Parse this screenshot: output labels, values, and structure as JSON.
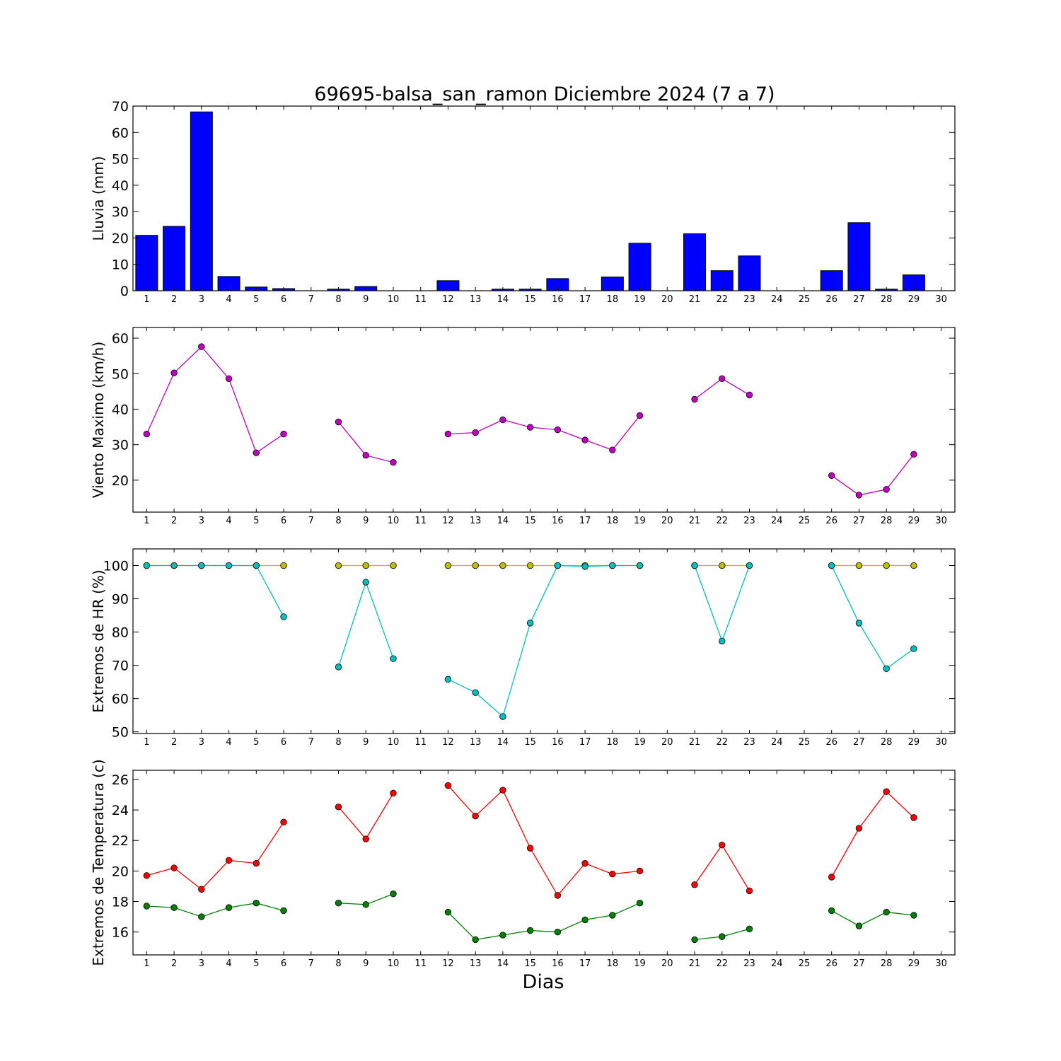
{
  "figure": {
    "title": "69695-balsa_san_ramon Diciembre 2024  (7 a 7)",
    "xlabel": "Dias"
  },
  "colors": {
    "rain": "#0000ff",
    "wind": "#bf00bf",
    "hr_max": "#bfbf00",
    "hr_min": "#00bfbf",
    "temp_max": "#ff0000",
    "temp_min": "#008000"
  },
  "chart_data": [
    {
      "type": "bar",
      "ylabel": "Lluvia (mm)",
      "xlim": [
        0.5,
        30.5
      ],
      "ylim": [
        0,
        70
      ],
      "yticks": [
        0,
        10,
        20,
        30,
        40,
        50,
        60,
        70
      ],
      "xticks": [
        1,
        2,
        3,
        4,
        5,
        6,
        7,
        8,
        9,
        10,
        11,
        12,
        13,
        14,
        15,
        16,
        17,
        18,
        19,
        20,
        21,
        22,
        23,
        24,
        25,
        26,
        27,
        28,
        29,
        30
      ],
      "x": [
        1,
        2,
        3,
        4,
        5,
        6,
        7,
        8,
        9,
        10,
        11,
        12,
        13,
        14,
        15,
        16,
        17,
        18,
        19,
        20,
        21,
        22,
        23,
        24,
        25,
        26,
        27,
        28,
        29,
        30
      ],
      "values": [
        21,
        24.4,
        67.8,
        5.4,
        1.4,
        0.8,
        0,
        0.6,
        1.6,
        0,
        0,
        3.8,
        0,
        0.6,
        0.6,
        4.6,
        0,
        5.2,
        18,
        0,
        21.6,
        7.6,
        13.2,
        0,
        0,
        7.6,
        25.8,
        0.6,
        6,
        0
      ]
    },
    {
      "type": "line",
      "ylabel": "Viento Maximo (km/h)",
      "xlim": [
        0.5,
        30.5
      ],
      "ylim": [
        11,
        63
      ],
      "yticks": [
        20,
        30,
        40,
        50,
        60
      ],
      "xticks": [
        1,
        2,
        3,
        4,
        5,
        6,
        7,
        8,
        9,
        10,
        11,
        12,
        13,
        14,
        15,
        16,
        17,
        18,
        19,
        20,
        21,
        22,
        23,
        24,
        25,
        26,
        27,
        28,
        29,
        30
      ],
      "x": [
        1,
        2,
        3,
        4,
        5,
        6,
        7,
        8,
        9,
        10,
        11,
        12,
        13,
        14,
        15,
        16,
        17,
        18,
        19,
        20,
        21,
        22,
        23,
        24,
        25,
        26,
        27,
        28,
        29,
        30
      ],
      "series": [
        {
          "values": [
            33,
            50.2,
            57.6,
            48.6,
            27.7,
            33,
            null,
            36.4,
            27,
            25,
            null,
            33,
            33.4,
            37,
            34.9,
            34.2,
            31.3,
            28.5,
            38.2,
            null,
            42.8,
            48.6,
            44,
            null,
            null,
            21.3,
            15.8,
            17.4,
            27.3,
            null
          ]
        }
      ]
    },
    {
      "type": "line",
      "ylabel": "Extremos de HR (%)",
      "xlim": [
        0.5,
        30.5
      ],
      "ylim": [
        49.5,
        105
      ],
      "yticks": [
        50,
        60,
        70,
        80,
        90,
        100
      ],
      "xticks": [
        1,
        2,
        3,
        4,
        5,
        6,
        7,
        8,
        9,
        10,
        11,
        12,
        13,
        14,
        15,
        16,
        17,
        18,
        19,
        20,
        21,
        22,
        23,
        24,
        25,
        26,
        27,
        28,
        29,
        30
      ],
      "x": [
        1,
        2,
        3,
        4,
        5,
        6,
        7,
        8,
        9,
        10,
        11,
        12,
        13,
        14,
        15,
        16,
        17,
        18,
        19,
        20,
        21,
        22,
        23,
        24,
        25,
        26,
        27,
        28,
        29,
        30
      ],
      "series": [
        {
          "values": [
            100,
            100,
            100,
            100,
            100,
            100,
            null,
            100,
            100,
            100,
            null,
            100,
            100,
            100,
            100,
            100,
            100,
            100,
            100,
            null,
            100,
            100,
            100,
            null,
            null,
            100,
            100,
            100,
            100,
            null
          ]
        },
        {
          "values": [
            100,
            100,
            100,
            100,
            100,
            84.6,
            null,
            69.5,
            95,
            72,
            null,
            65.8,
            61.8,
            54.6,
            82.7,
            100,
            99.7,
            100,
            100,
            null,
            100,
            77.3,
            100,
            null,
            null,
            100,
            82.7,
            69,
            75,
            null
          ]
        }
      ]
    },
    {
      "type": "line",
      "ylabel": "Extremos de Temperatura (c)",
      "xlim": [
        0.5,
        30.5
      ],
      "ylim": [
        14.5,
        26.6
      ],
      "yticks": [
        16,
        18,
        20,
        22,
        24,
        26
      ],
      "xticks": [
        1,
        2,
        3,
        4,
        5,
        6,
        7,
        8,
        9,
        10,
        11,
        12,
        13,
        14,
        15,
        16,
        17,
        18,
        19,
        20,
        21,
        22,
        23,
        24,
        25,
        26,
        27,
        28,
        29,
        30
      ],
      "x": [
        1,
        2,
        3,
        4,
        5,
        6,
        7,
        8,
        9,
        10,
        11,
        12,
        13,
        14,
        15,
        16,
        17,
        18,
        19,
        20,
        21,
        22,
        23,
        24,
        25,
        26,
        27,
        28,
        29,
        30
      ],
      "series": [
        {
          "values": [
            19.7,
            20.2,
            18.8,
            20.7,
            20.5,
            23.2,
            null,
            24.2,
            22.1,
            25.1,
            null,
            25.6,
            23.6,
            25.3,
            21.5,
            18.4,
            20.5,
            19.8,
            20,
            null,
            19.1,
            21.7,
            18.7,
            null,
            null,
            19.6,
            22.8,
            25.2,
            23.5,
            null
          ]
        },
        {
          "values": [
            17.7,
            17.6,
            17,
            17.6,
            17.9,
            17.4,
            null,
            17.9,
            17.8,
            18.5,
            null,
            17.3,
            15.5,
            15.8,
            16.1,
            16,
            16.8,
            17.1,
            17.9,
            null,
            15.5,
            15.7,
            16.2,
            null,
            null,
            17.4,
            16.4,
            17.3,
            17.1,
            null
          ]
        }
      ]
    }
  ]
}
